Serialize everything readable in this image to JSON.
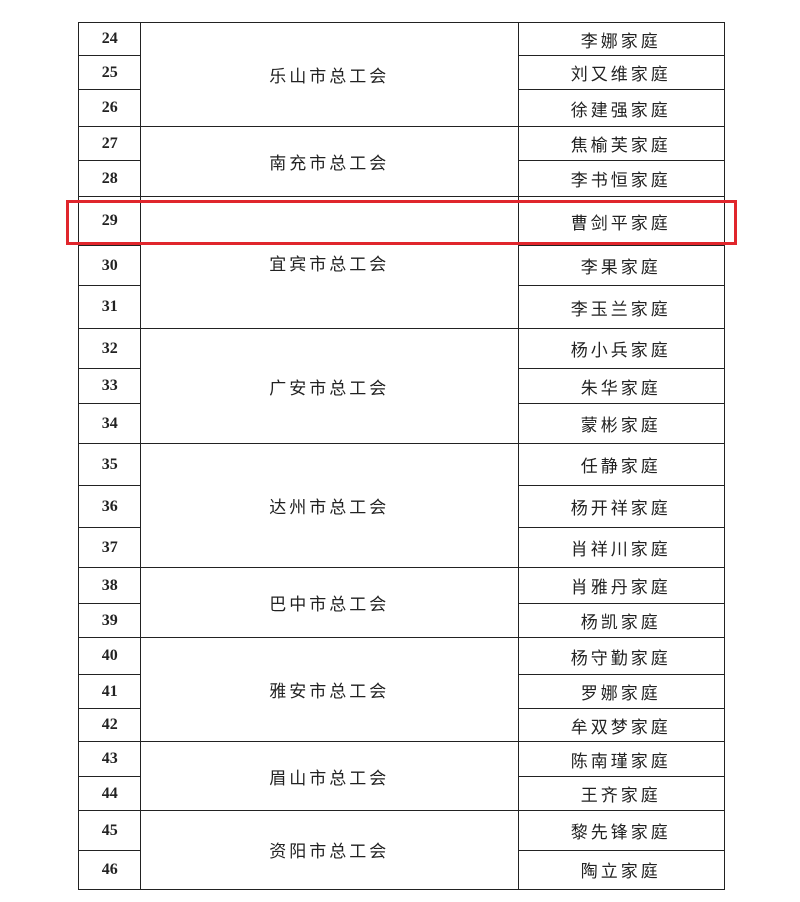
{
  "table": {
    "groups": [
      {
        "org": "乐山市总工会",
        "rows": [
          [
            24,
            "李娜家庭"
          ],
          [
            25,
            "刘又维家庭"
          ],
          [
            26,
            "徐建强家庭"
          ]
        ]
      },
      {
        "org": "南充市总工会",
        "rows": [
          [
            27,
            "焦榆芙家庭"
          ],
          [
            28,
            "李书恒家庭"
          ]
        ]
      },
      {
        "org": "宜宾市总工会",
        "rows": [
          [
            29,
            "曹剑平家庭"
          ],
          [
            30,
            "李果家庭"
          ],
          [
            31,
            "李玉兰家庭"
          ]
        ]
      },
      {
        "org": "广安市总工会",
        "rows": [
          [
            32,
            "杨小兵家庭"
          ],
          [
            33,
            "朱华家庭"
          ],
          [
            34,
            "蒙彬家庭"
          ]
        ]
      },
      {
        "org": "达州市总工会",
        "rows": [
          [
            35,
            "任静家庭"
          ],
          [
            36,
            "杨开祥家庭"
          ],
          [
            37,
            "肖祥川家庭"
          ]
        ]
      },
      {
        "org": "巴中市总工会",
        "rows": [
          [
            38,
            "肖雅丹家庭"
          ],
          [
            39,
            "杨凯家庭"
          ]
        ]
      },
      {
        "org": "雅安市总工会",
        "rows": [
          [
            40,
            "杨守勤家庭"
          ],
          [
            41,
            "罗娜家庭"
          ],
          [
            42,
            "牟双梦家庭"
          ]
        ]
      },
      {
        "org": "眉山市总工会",
        "rows": [
          [
            43,
            "陈南瑾家庭"
          ],
          [
            44,
            "王齐家庭"
          ]
        ]
      },
      {
        "org": "资阳市总工会",
        "rows": [
          [
            45,
            "黎先锋家庭"
          ],
          [
            46,
            "陶立家庭"
          ]
        ]
      }
    ]
  }
}
